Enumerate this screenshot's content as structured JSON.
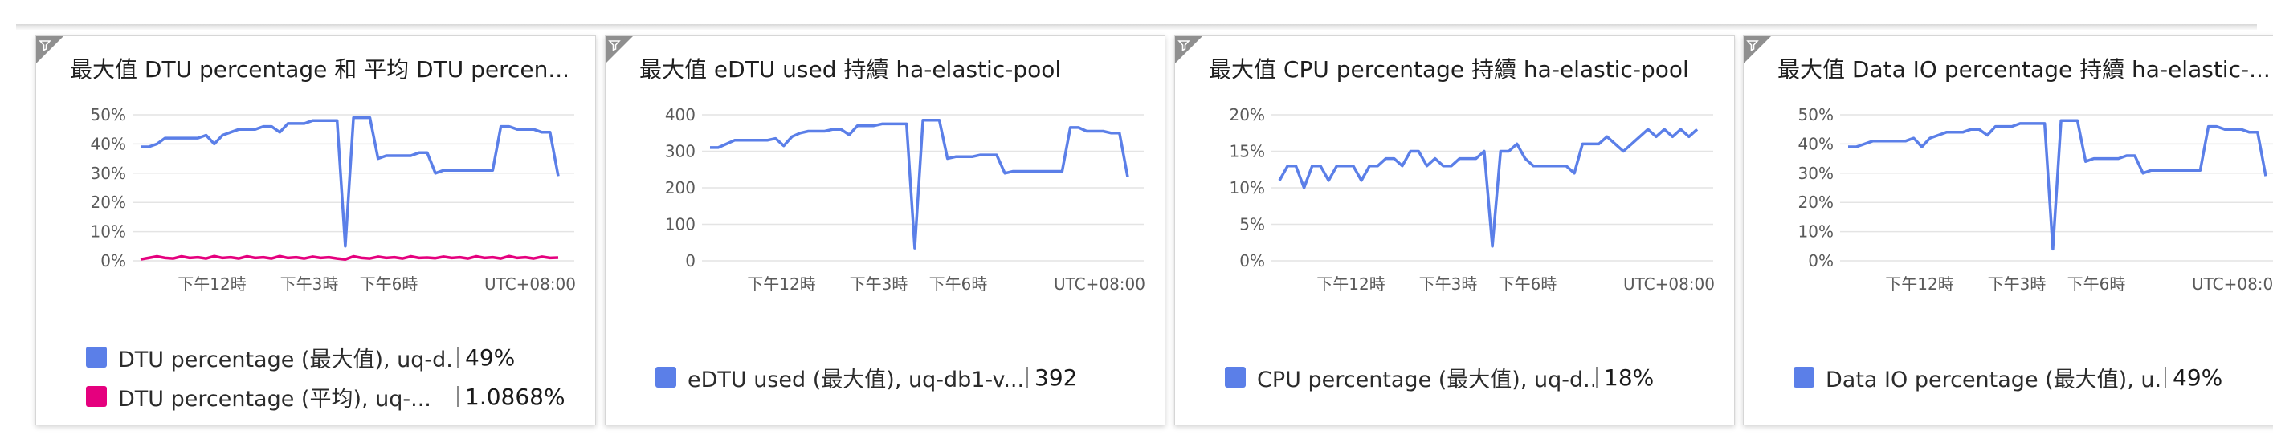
{
  "colors": {
    "series_blue": "#5b7fe8",
    "series_pink": "#e5007e",
    "filter_gray": "#8f8f8f"
  },
  "tiles": [
    {
      "title": "最大值 DTU percentage 和 平均 DTU percen...",
      "legend": [
        {
          "label": "DTU percentage (最大值), uq-d...",
          "value": "49%",
          "color": "#5b7fe8"
        },
        {
          "label": "DTU percentage (平均), uq-...",
          "value": "1.0868%",
          "color": "#e5007e"
        }
      ]
    },
    {
      "title": "最大值 eDTU used 持續 ha-elastic-pool",
      "legend": [
        {
          "label": "eDTU used (最大值), uq-db1-v...",
          "value": "392",
          "color": "#5b7fe8"
        }
      ]
    },
    {
      "title": "最大值 CPU percentage 持續 ha-elastic-pool",
      "legend": [
        {
          "label": "CPU percentage (最大值), uq-d...",
          "value": "18%",
          "color": "#5b7fe8"
        }
      ]
    },
    {
      "title": "最大值 Data IO percentage 持續 ha-elastic-...",
      "legend": [
        {
          "label": "Data IO percentage (最大值), u...",
          "value": "49%",
          "color": "#5b7fe8"
        }
      ]
    }
  ],
  "chart_data": [
    {
      "type": "line",
      "ylim": [
        0,
        50
      ],
      "y_ticks": [
        "0%",
        "10%",
        "20%",
        "30%",
        "40%",
        "50%"
      ],
      "y_tick_values": [
        0,
        10,
        20,
        30,
        40,
        50
      ],
      "x_ticks": [
        "下午12時",
        "下午3時",
        "下午6時"
      ],
      "timezone": "UTC+08:00",
      "series": [
        {
          "name": "DTU percentage (最大值), uq-d...",
          "color": "#5b7fe8",
          "values": [
            39,
            39,
            40,
            42,
            42,
            42,
            42,
            42,
            43,
            40,
            43,
            44,
            45,
            45,
            45,
            46,
            46,
            44,
            47,
            47,
            47,
            48,
            48,
            48,
            48,
            5,
            49,
            49,
            49,
            35,
            36,
            36,
            36,
            36,
            37,
            37,
            30,
            31,
            31,
            31,
            31,
            31,
            31,
            31,
            46,
            46,
            45,
            45,
            45,
            44,
            44,
            29
          ]
        },
        {
          "name": "DTU percentage (平均), uq-...",
          "color": "#e5007e",
          "values": [
            0.5,
            1,
            1.5,
            1,
            0.8,
            1.5,
            1,
            1.2,
            0.8,
            1.6,
            1,
            1.2,
            0.8,
            1.5,
            1,
            1.2,
            0.8,
            1.6,
            1,
            1.2,
            0.8,
            1.4,
            1,
            1.2,
            0.8,
            0.5,
            1.5,
            1,
            0.8,
            1.4,
            1,
            1.2,
            0.8,
            1.5,
            1,
            1.1,
            0.9,
            1.4,
            1,
            1.2,
            0.8,
            1.5,
            1,
            1.2,
            0.8,
            1.6,
            1,
            1.2,
            0.8,
            1.4,
            1,
            1.1
          ]
        }
      ]
    },
    {
      "type": "line",
      "ylim": [
        0,
        400
      ],
      "y_ticks": [
        "0",
        "100",
        "200",
        "300",
        "400"
      ],
      "y_tick_values": [
        0,
        100,
        200,
        300,
        400
      ],
      "x_ticks": [
        "下午12時",
        "下午3時",
        "下午6時"
      ],
      "timezone": "UTC+08:00",
      "series": [
        {
          "name": "eDTU used (最大值), uq-db1-v...",
          "color": "#5b7fe8",
          "values": [
            310,
            310,
            320,
            330,
            330,
            330,
            330,
            330,
            335,
            315,
            340,
            350,
            355,
            355,
            355,
            360,
            360,
            345,
            370,
            370,
            370,
            375,
            375,
            375,
            375,
            35,
            385,
            385,
            385,
            280,
            285,
            285,
            285,
            290,
            290,
            290,
            240,
            245,
            245,
            245,
            245,
            245,
            245,
            245,
            365,
            365,
            355,
            355,
            355,
            350,
            350,
            230
          ]
        }
      ]
    },
    {
      "type": "line",
      "ylim": [
        0,
        20
      ],
      "y_ticks": [
        "0%",
        "5%",
        "10%",
        "15%",
        "20%"
      ],
      "y_tick_values": [
        0,
        5,
        10,
        15,
        20
      ],
      "x_ticks": [
        "下午12時",
        "下午3時",
        "下午6時"
      ],
      "timezone": "UTC+08:00",
      "series": [
        {
          "name": "CPU percentage (最大值), uq-d...",
          "color": "#5b7fe8",
          "values": [
            11,
            13,
            13,
            10,
            13,
            13,
            11,
            13,
            13,
            13,
            11,
            13,
            13,
            14,
            14,
            13,
            15,
            15,
            13,
            14,
            13,
            13,
            14,
            14,
            14,
            15,
            2,
            15,
            15,
            16,
            14,
            13,
            13,
            13,
            13,
            13,
            12,
            16,
            16,
            16,
            17,
            16,
            15,
            16,
            17,
            18,
            17,
            18,
            17,
            18,
            17,
            18
          ]
        }
      ]
    },
    {
      "type": "line",
      "ylim": [
        0,
        50
      ],
      "y_ticks": [
        "0%",
        "10%",
        "20%",
        "30%",
        "40%",
        "50%"
      ],
      "y_tick_values": [
        0,
        10,
        20,
        30,
        40,
        50
      ],
      "x_ticks": [
        "下午12時",
        "下午3時",
        "下午6時"
      ],
      "timezone": "UTC+08:00",
      "series": [
        {
          "name": "Data IO percentage (最大值), u...",
          "color": "#5b7fe8",
          "values": [
            39,
            39,
            40,
            41,
            41,
            41,
            41,
            41,
            42,
            39,
            42,
            43,
            44,
            44,
            44,
            45,
            45,
            43,
            46,
            46,
            46,
            47,
            47,
            47,
            47,
            4,
            48,
            48,
            48,
            34,
            35,
            35,
            35,
            35,
            36,
            36,
            30,
            31,
            31,
            31,
            31,
            31,
            31,
            31,
            46,
            46,
            45,
            45,
            45,
            44,
            44,
            29
          ]
        }
      ]
    }
  ]
}
